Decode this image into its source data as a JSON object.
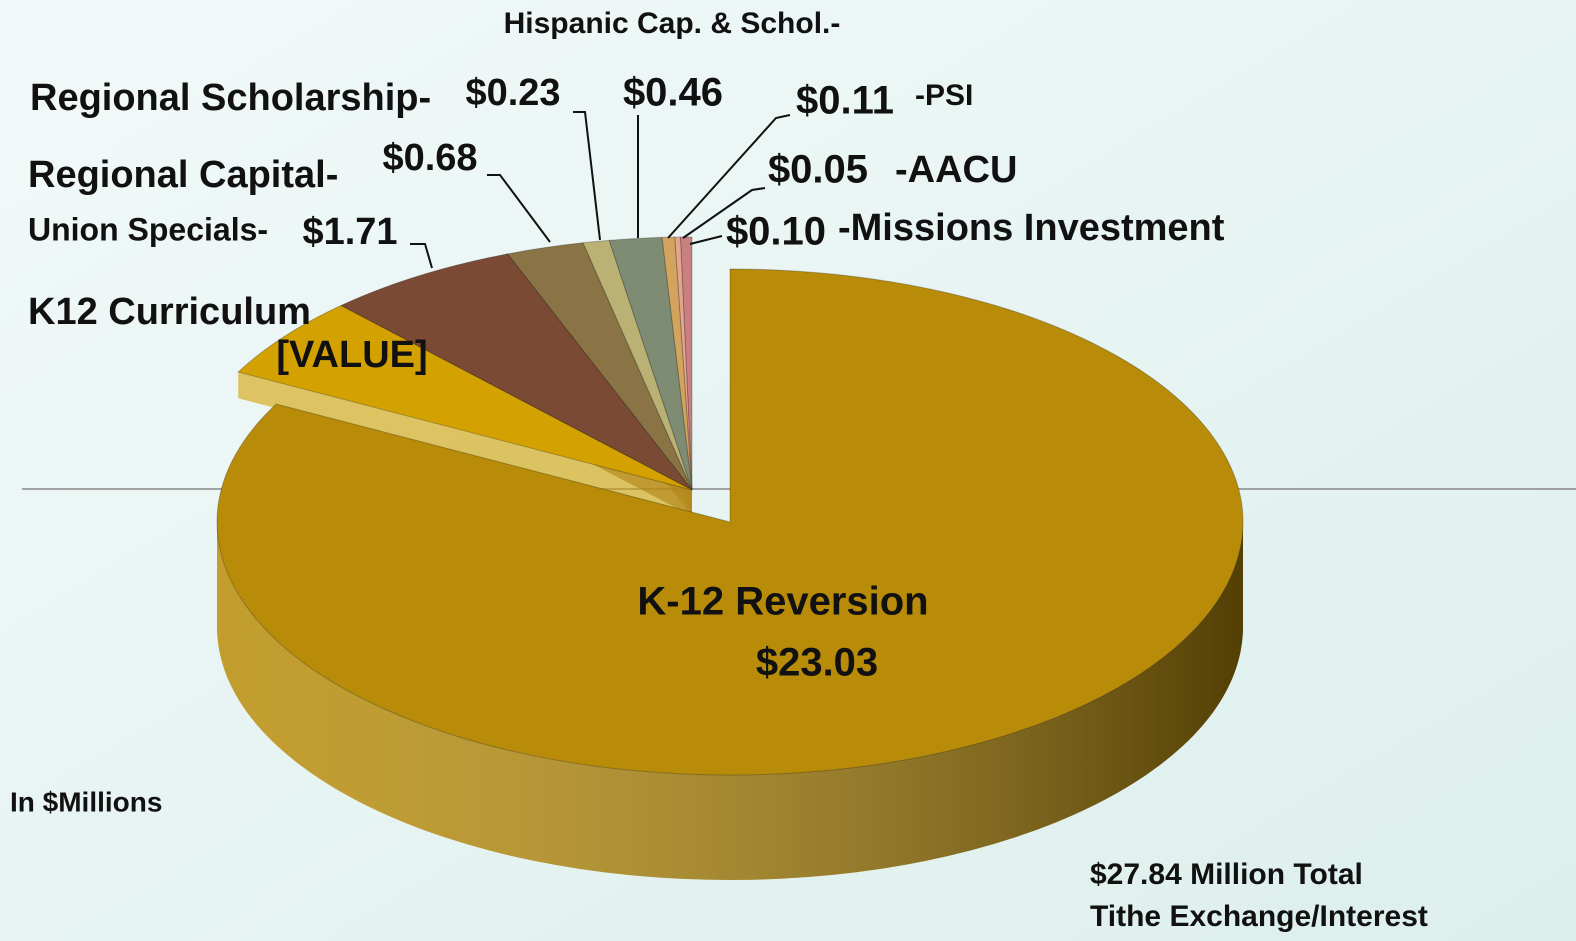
{
  "chart_data": {
    "type": "pie",
    "categories": [
      "K-12 Reversion",
      "K12 Curriculum",
      "Union Specials-",
      "Regional Capital-",
      "Regional Scholarship-",
      "Hispanic Cap. & Schol.-",
      "-PSI",
      "-AACU",
      "-Missions Investment"
    ],
    "values": [
      23.03,
      1.47,
      1.71,
      0.68,
      0.23,
      0.46,
      0.11,
      0.05,
      0.1
    ],
    "value_labels": [
      "$23.03",
      "[VALUE]",
      "$1.71",
      "$0.68",
      "$0.23",
      "$0.46",
      "$0.11",
      "$0.05",
      "$0.10"
    ],
    "colors": [
      "#b88c08",
      "#d4a200",
      "#7a4a34",
      "#8a7446",
      "#b9b274",
      "#7f8c74",
      "#d2a45e",
      "#e4a48e",
      "#c98080"
    ],
    "annotations": [
      "In $Millions",
      "$27.84 Million Total",
      "Tithe Exchange/Interest"
    ]
  }
}
